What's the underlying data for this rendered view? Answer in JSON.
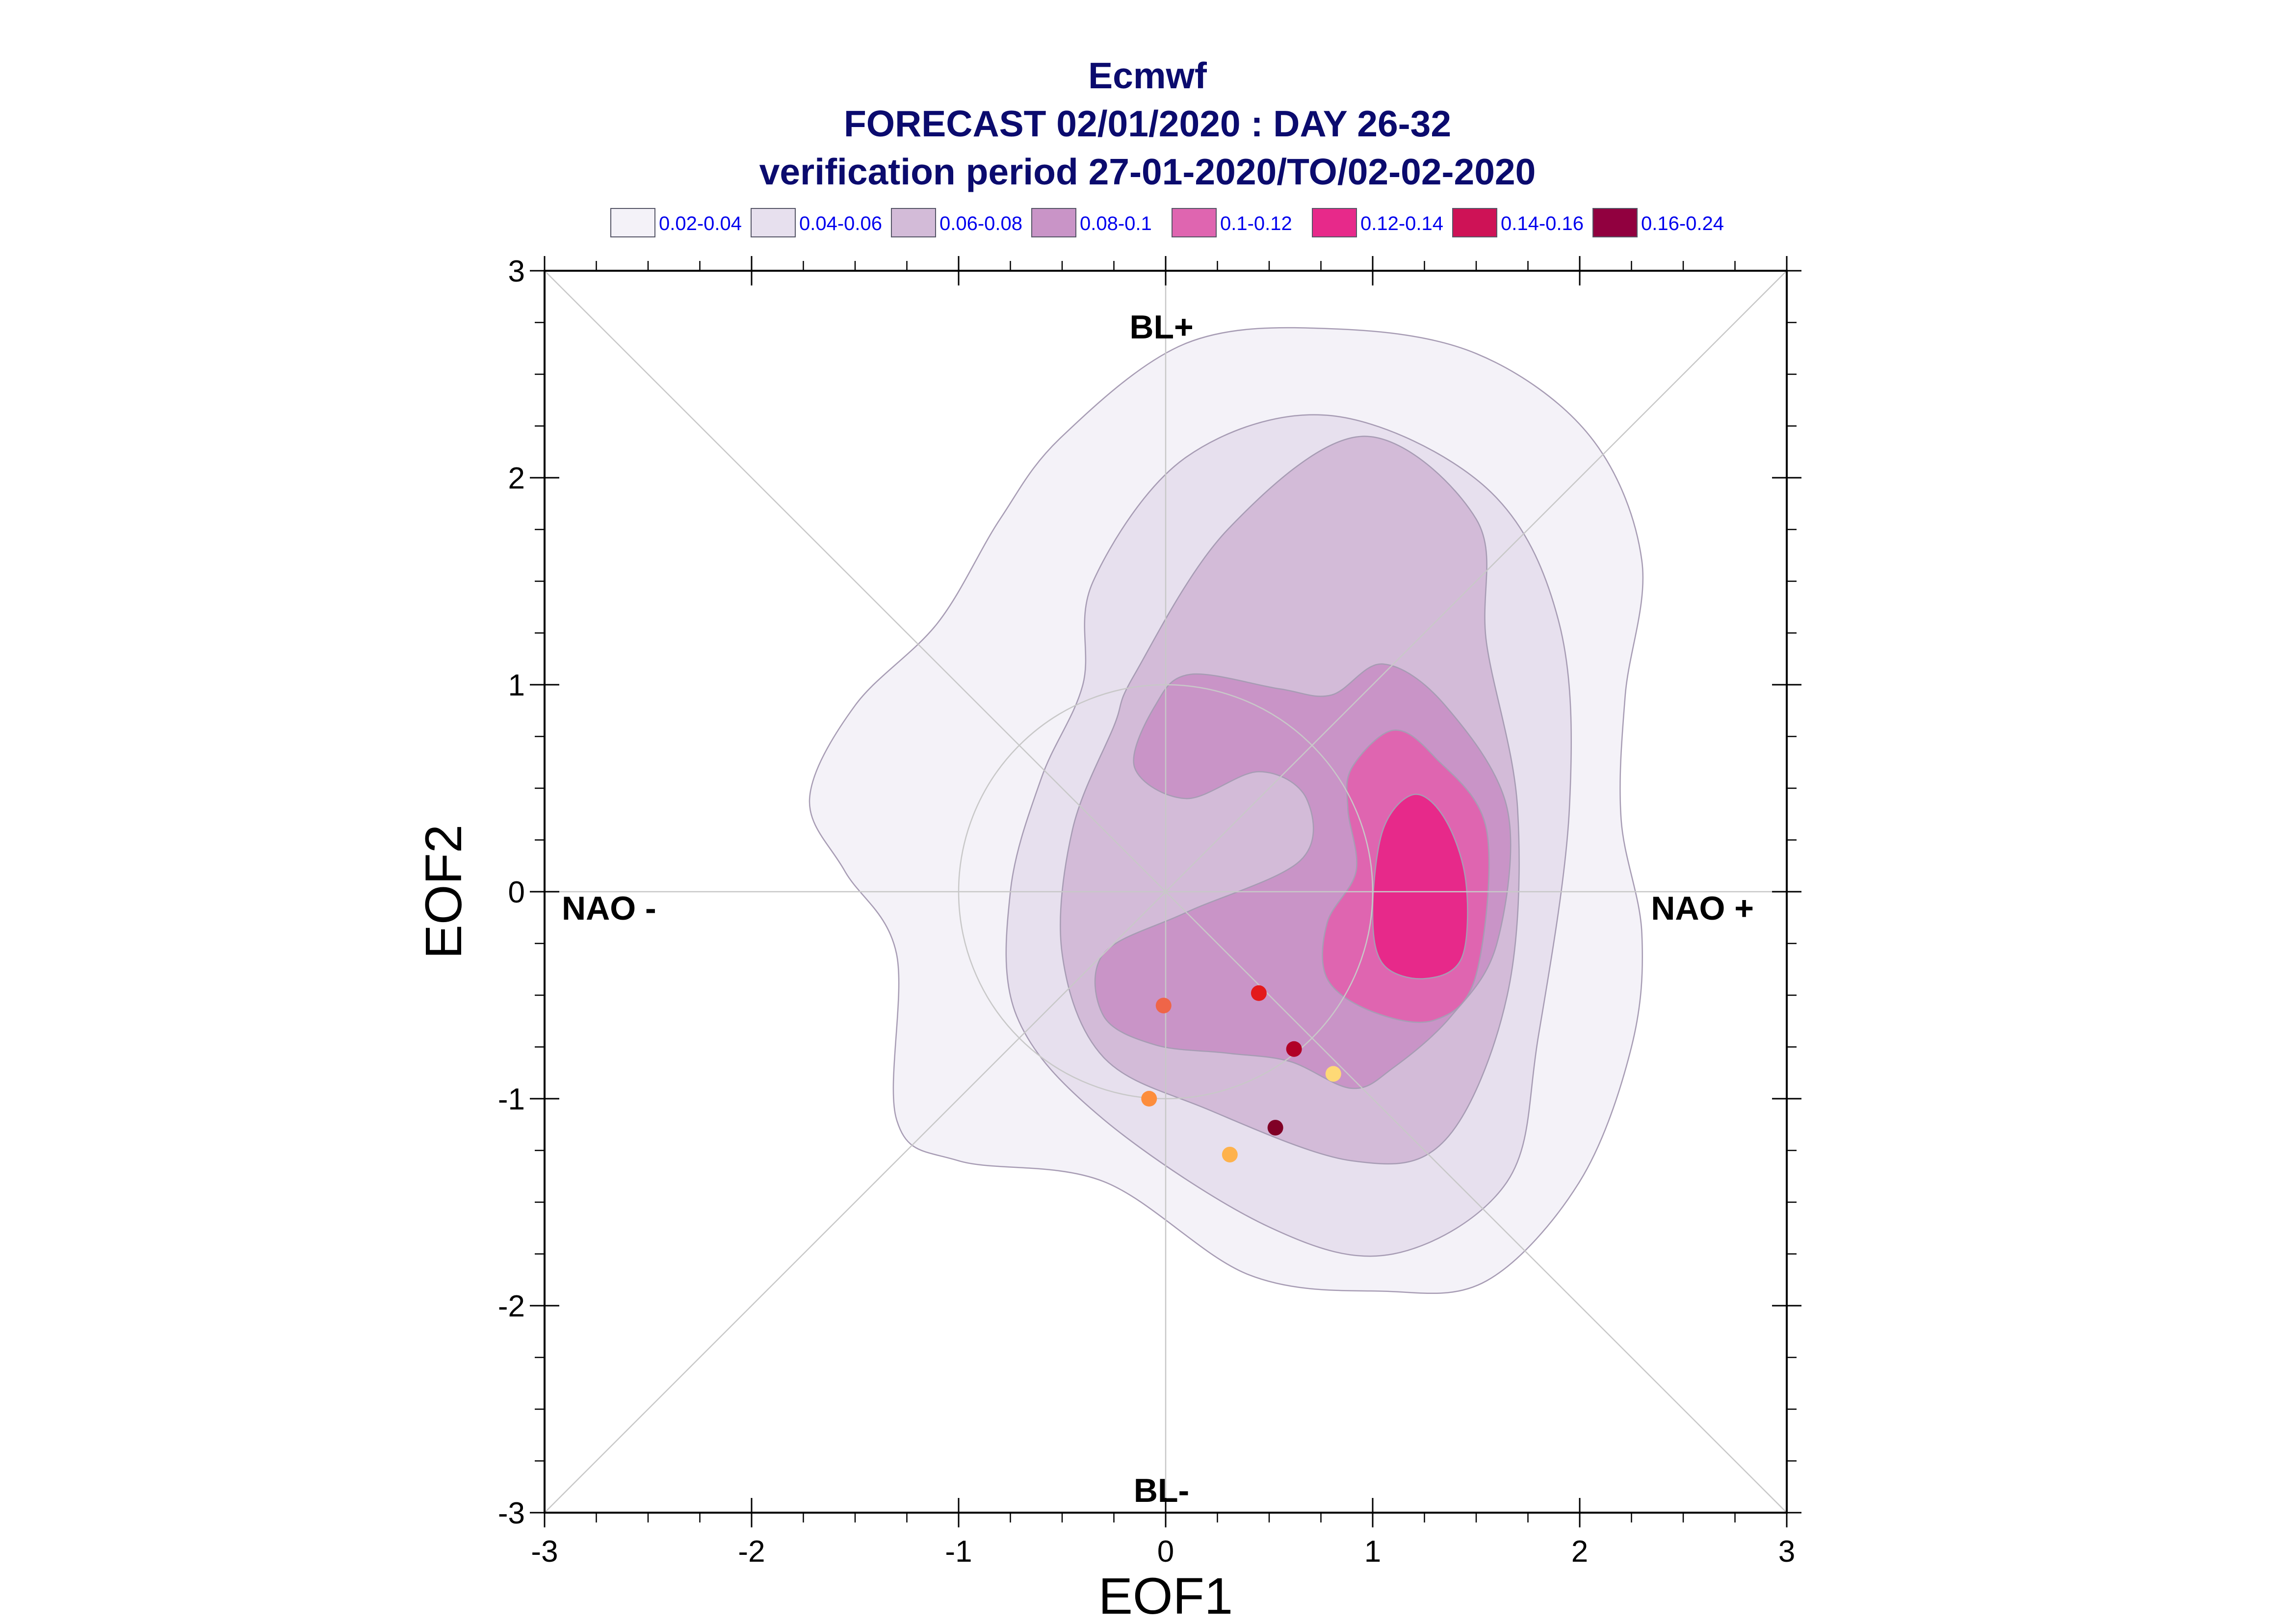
{
  "chart_data": {
    "type": "contour-scatter",
    "title_lines": [
      "Ecmwf",
      "FORECAST 02/01/2020 : DAY 26-32",
      "verification period 27-01-2020/TO/02-02-2020"
    ],
    "xlabel": "EOF1",
    "ylabel": "EOF2",
    "xlim": [
      -3,
      3
    ],
    "ylim": [
      -3,
      3
    ],
    "xticks": [
      "-3",
      "-2",
      "-1",
      "0",
      "1",
      "2",
      "3"
    ],
    "yticks": [
      "-3",
      "-2",
      "-1",
      "0",
      "1",
      "2",
      "3"
    ],
    "annotations": {
      "top": "BL+",
      "bottom": "BL-",
      "left": "NAO -",
      "right": "NAO +"
    },
    "legend": [
      {
        "label": "0.02-0.04",
        "color": "#f4f2f8"
      },
      {
        "label": "0.04-0.06",
        "color": "#e7e0ee"
      },
      {
        "label": "0.06-0.08",
        "color": "#d3bbd8"
      },
      {
        "label": "0.08-0.1",
        "color": "#c994c7"
      },
      {
        "label": "0.1-0.12",
        "color": "#df65b0"
      },
      {
        "label": "0.12-0.14",
        "color": "#e7298a"
      },
      {
        "label": "0.14-0.16",
        "color": "#ce1256"
      },
      {
        "label": "0.16-0.24",
        "color": "#91003f"
      }
    ],
    "density_levels": [
      {
        "range": "0.02-0.04",
        "color": "#f4f2f8",
        "outline": [
          [
            -0.5,
            2.2
          ],
          [
            0.1,
            2.65
          ],
          [
            0.8,
            2.72
          ],
          [
            1.5,
            2.6
          ],
          [
            2.05,
            2.2
          ],
          [
            2.3,
            1.6
          ],
          [
            2.22,
            0.95
          ],
          [
            2.2,
            0.35
          ],
          [
            2.3,
            -0.2
          ],
          [
            2.25,
            -0.75
          ],
          [
            2.0,
            -1.4
          ],
          [
            1.55,
            -1.88
          ],
          [
            1.05,
            -1.93
          ],
          [
            0.4,
            -1.85
          ],
          [
            -0.3,
            -1.4
          ],
          [
            -1.0,
            -1.3
          ],
          [
            -1.3,
            -1.1
          ],
          [
            -1.3,
            -0.3
          ],
          [
            -1.55,
            0.1
          ],
          [
            -1.72,
            0.45
          ],
          [
            -1.5,
            0.9
          ],
          [
            -1.1,
            1.3
          ],
          [
            -0.8,
            1.8
          ]
        ]
      },
      {
        "range": "0.04-0.06",
        "color": "#e7e0ee",
        "outline": [
          [
            -0.35,
            1.5
          ],
          [
            0.1,
            2.1
          ],
          [
            0.8,
            2.3
          ],
          [
            1.55,
            1.95
          ],
          [
            1.9,
            1.3
          ],
          [
            1.95,
            0.4
          ],
          [
            1.8,
            -0.7
          ],
          [
            1.65,
            -1.4
          ],
          [
            1.1,
            -1.75
          ],
          [
            0.5,
            -1.62
          ],
          [
            -0.3,
            -1.1
          ],
          [
            -0.72,
            -0.6
          ],
          [
            -0.75,
            0.0
          ],
          [
            -0.6,
            0.55
          ],
          [
            -0.4,
            1.0
          ]
        ]
      },
      {
        "range": "0.06-0.08",
        "color": "#d3bbd8",
        "outline": [
          [
            0.3,
            1.75
          ],
          [
            0.95,
            2.2
          ],
          [
            1.5,
            1.8
          ],
          [
            1.55,
            1.2
          ],
          [
            1.7,
            0.4
          ],
          [
            1.65,
            -0.5
          ],
          [
            1.35,
            -1.2
          ],
          [
            0.9,
            -1.3
          ],
          [
            0.2,
            -1.05
          ],
          [
            -0.3,
            -0.8
          ],
          [
            -0.5,
            -0.3
          ],
          [
            -0.45,
            0.3
          ],
          [
            -0.25,
            0.8
          ],
          [
            -0.15,
            1.05
          ]
        ]
      },
      {
        "range": "0.08-0.1",
        "color": "#c994c7",
        "outline": [
          [
            0.12,
            1.05
          ],
          [
            0.55,
            0.98
          ],
          [
            0.8,
            0.95
          ],
          [
            1.05,
            1.1
          ],
          [
            1.35,
            0.9
          ],
          [
            1.65,
            0.4
          ],
          [
            1.6,
            -0.25
          ],
          [
            1.38,
            -0.6
          ],
          [
            1.1,
            -0.85
          ],
          [
            0.9,
            -0.95
          ],
          [
            0.6,
            -0.82
          ],
          [
            0.3,
            -0.78
          ],
          [
            -0.05,
            -0.74
          ],
          [
            -0.3,
            -0.6
          ],
          [
            -0.3,
            -0.3
          ],
          [
            0.1,
            -0.1
          ],
          [
            0.65,
            0.15
          ],
          [
            0.68,
            0.45
          ],
          [
            0.45,
            0.58
          ],
          [
            0.1,
            0.45
          ],
          [
            -0.15,
            0.6
          ],
          [
            -0.05,
            0.9
          ]
        ]
      },
      {
        "range": "0.1-0.12",
        "color": "#df65b0",
        "outline": [
          [
            0.9,
            0.6
          ],
          [
            1.1,
            0.78
          ],
          [
            1.3,
            0.65
          ],
          [
            1.55,
            0.3
          ],
          [
            1.5,
            -0.4
          ],
          [
            1.3,
            -0.62
          ],
          [
            1.0,
            -0.58
          ],
          [
            0.78,
            -0.42
          ],
          [
            0.78,
            -0.15
          ],
          [
            0.92,
            0.1
          ],
          [
            0.88,
            0.4
          ]
        ]
      },
      {
        "range": "0.12-0.14",
        "color": "#e7298a",
        "outline": [
          [
            1.05,
            0.3
          ],
          [
            1.2,
            0.47
          ],
          [
            1.35,
            0.35
          ],
          [
            1.45,
            0.05
          ],
          [
            1.43,
            -0.32
          ],
          [
            1.25,
            -0.42
          ],
          [
            1.05,
            -0.35
          ],
          [
            1.0,
            -0.1
          ]
        ]
      }
    ],
    "reference_lines": {
      "circle_radius": 1,
      "diagonals": true,
      "zero_axes": true
    },
    "points": [
      {
        "x": -0.01,
        "y": -0.55,
        "color": "#ef6548"
      },
      {
        "x": 0.45,
        "y": -0.49,
        "color": "#e31a1c"
      },
      {
        "x": 0.62,
        "y": -0.76,
        "color": "#b10026"
      },
      {
        "x": 0.81,
        "y": -0.88,
        "color": "#fed976"
      },
      {
        "x": -0.08,
        "y": -1.0,
        "color": "#fd8d3c"
      },
      {
        "x": 0.53,
        "y": -1.14,
        "color": "#800026"
      },
      {
        "x": 0.31,
        "y": -1.27,
        "color": "#feb24c"
      }
    ]
  }
}
